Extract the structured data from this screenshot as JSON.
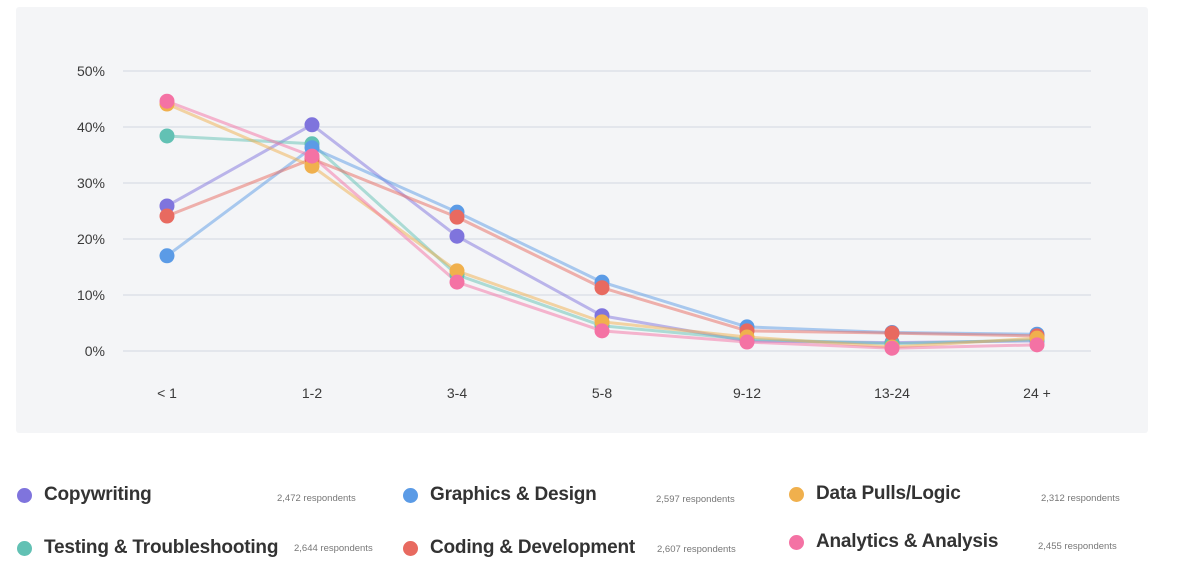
{
  "chart_data": {
    "type": "line",
    "title": "",
    "xlabel": "",
    "ylabel": "",
    "categories": [
      "< 1",
      "1-2",
      "3-4",
      "5-8",
      "9-12",
      "13-24",
      "24 +"
    ],
    "ylim": [
      0,
      50
    ],
    "yticks": [
      0,
      10,
      20,
      30,
      40,
      50
    ],
    "ytick_labels": [
      "0%",
      "10%",
      "20%",
      "30%",
      "40%",
      "50%"
    ],
    "grid": true,
    "legend_position": "bottom",
    "series": [
      {
        "name": "Copywriting",
        "color": "#7f74dd",
        "respondents": "2,472 respondents",
        "values": [
          25.9,
          40.4,
          20.5,
          6.3,
          1.8,
          1.5,
          1.8
        ]
      },
      {
        "name": "Testing & Troubleshooting",
        "color": "#62c1b4",
        "respondents": "2,644 respondents",
        "values": [
          38.4,
          37.0,
          13.6,
          4.5,
          2.1,
          1.3,
          2.0
        ]
      },
      {
        "name": "Graphics & Design",
        "color": "#5b9be6",
        "respondents": "2,597 respondents",
        "values": [
          17.0,
          36.3,
          24.8,
          12.3,
          4.3,
          3.3,
          3.0
        ]
      },
      {
        "name": "Coding & Development",
        "color": "#e86a60",
        "respondents": "2,607 respondents",
        "values": [
          24.1,
          34.3,
          23.9,
          11.3,
          3.6,
          3.2,
          2.7
        ]
      },
      {
        "name": "Data Pulls/Logic",
        "color": "#f0b04d",
        "respondents": "2,312 respondents",
        "values": [
          44.1,
          33.0,
          14.3,
          5.2,
          2.5,
          0.7,
          2.3
        ]
      },
      {
        "name": "Analytics & Analysis",
        "color": "#f472a4",
        "respondents": "2,455 respondents",
        "values": [
          44.6,
          34.8,
          12.3,
          3.6,
          1.6,
          0.5,
          1.1
        ]
      }
    ]
  }
}
